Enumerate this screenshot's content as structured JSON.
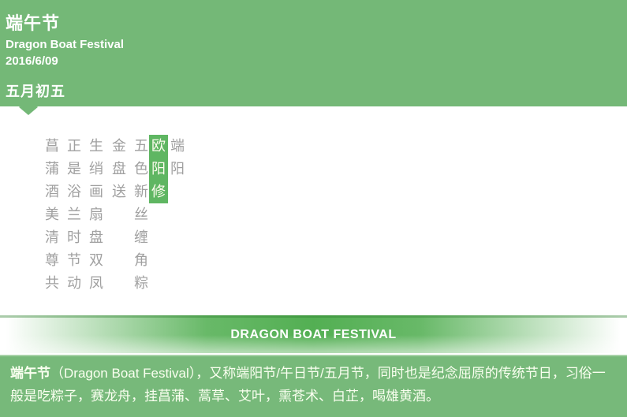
{
  "header": {
    "title": "端午节",
    "subtitle_en": "Dragon Boat Festival",
    "date": "2016/6/09",
    "lunar_date": "五月初五"
  },
  "poem": {
    "columns": [
      {
        "text": "菖蒲酒美清尊共",
        "highlighted": false
      },
      {
        "text": "正是浴兰时节动",
        "highlighted": false
      },
      {
        "text": "生绡画扇盘双凤",
        "highlighted": false
      },
      {
        "text": "金盘送",
        "highlighted": false
      },
      {
        "text": "五色新丝缠角粽",
        "highlighted": false
      },
      {
        "text": "欧阳修",
        "highlighted": true
      },
      {
        "text": "端阳",
        "highlighted": false
      }
    ]
  },
  "banner": {
    "title": "DRAGON BOAT FESTIVAL"
  },
  "footer": {
    "lead": "端午节",
    "body": "（Dragon Boat Festival），又称端阳节/午日节/五月节，同时也是纪念屈原的传统节日，习俗一般是吃粽子，赛龙舟，挂菖蒲、蒿草、艾叶，熏苍术、白芷，喝雄黄酒。"
  },
  "colors": {
    "header_green": "#74b877",
    "highlight_green": "#5fb662",
    "banner_center_green": "#53af53",
    "footer_green": "#77b97a",
    "poem_gray": "#a0a0a0"
  }
}
